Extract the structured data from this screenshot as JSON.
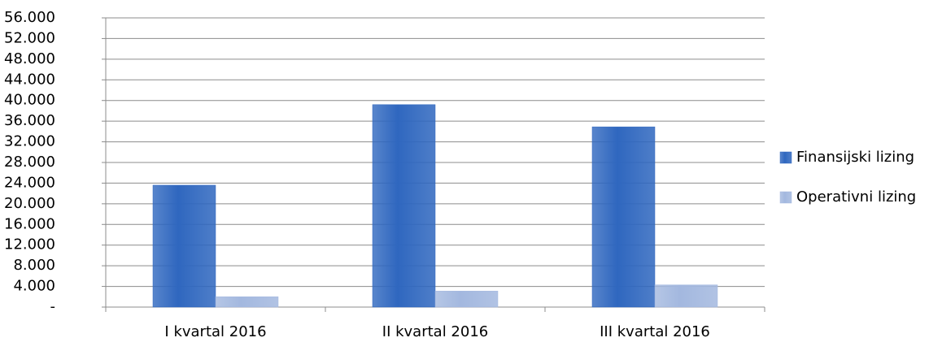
{
  "chart_data": {
    "type": "bar",
    "categories": [
      "I kvartal 2016",
      "II kvartal 2016",
      "III kvartal 2016"
    ],
    "series": [
      {
        "name": "Finansijski lizing",
        "color": "#2f67bf",
        "values": [
          23600,
          39200,
          34900
        ]
      },
      {
        "name": "Operativni lizing",
        "color": "#a3b8df",
        "values": [
          2000,
          3100,
          4300
        ]
      }
    ],
    "ylim": [
      0,
      56000
    ],
    "yticks": [
      {
        "value": 0,
        "label": "-"
      },
      {
        "value": 4000,
        "label": "4.000"
      },
      {
        "value": 8000,
        "label": "8.000"
      },
      {
        "value": 12000,
        "label": "12.000"
      },
      {
        "value": 16000,
        "label": "16.000"
      },
      {
        "value": 20000,
        "label": "20.000"
      },
      {
        "value": 24000,
        "label": "24.000"
      },
      {
        "value": 28000,
        "label": "28.000"
      },
      {
        "value": 32000,
        "label": "32.000"
      },
      {
        "value": 36000,
        "label": "36.000"
      },
      {
        "value": 40000,
        "label": "40.000"
      },
      {
        "value": 44000,
        "label": "44.000"
      },
      {
        "value": 48000,
        "label": "48.000"
      },
      {
        "value": 52000,
        "label": "52.000"
      },
      {
        "value": 56000,
        "label": "56.000"
      }
    ],
    "grid": true,
    "legend": "right"
  }
}
